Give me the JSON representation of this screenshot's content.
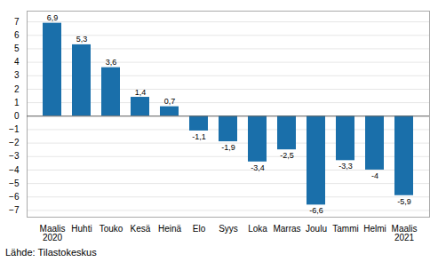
{
  "chart_data": {
    "type": "bar",
    "categories": [
      "Maalis\n2020",
      "Huhti",
      "Touko",
      "Kesä",
      "Heinä",
      "Elo",
      "Syys",
      "Loka",
      "Marras",
      "Joulu",
      "Tammi",
      "Helmi",
      "Maalis\n2021"
    ],
    "values": [
      6.9,
      5.3,
      3.6,
      1.4,
      0.7,
      -1.1,
      -1.9,
      -3.4,
      -2.5,
      -6.6,
      -3.3,
      -4.0,
      -5.9
    ],
    "value_labels": [
      "6,9",
      "5,3",
      "3,6",
      "1,4",
      "0,7",
      "-1,1",
      "-1,9",
      "-3,4",
      "-2,5",
      "-6,6",
      "-3,3",
      "-4",
      "-5,9"
    ],
    "data_labels": true,
    "color": "#1a6faa",
    "ylim": [
      -7.5,
      7.8
    ],
    "yticks": [
      -7,
      -6,
      -5,
      -4,
      -3,
      -2,
      -1,
      0,
      1,
      2,
      3,
      4,
      5,
      6,
      7
    ],
    "grid": true,
    "annotation": "Lähde: Tilastokeskus"
  }
}
